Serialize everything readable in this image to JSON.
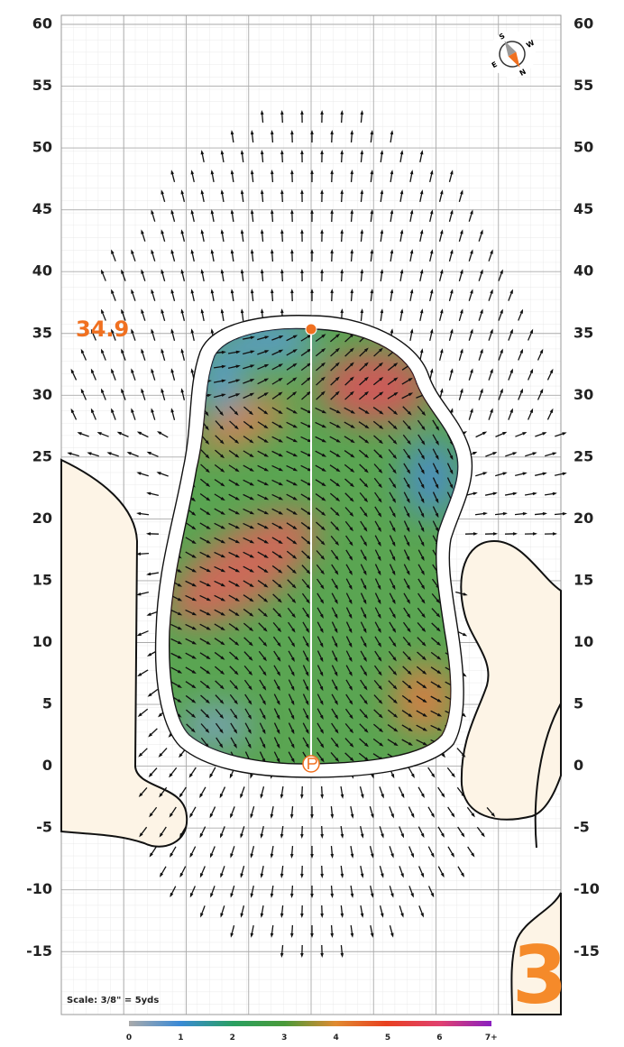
{
  "axis": {
    "labels": [
      60,
      55,
      50,
      45,
      40,
      35,
      30,
      25,
      20,
      15,
      10,
      5,
      0,
      -5,
      -10,
      -15
    ]
  },
  "depth_label": "34.9",
  "scale_note": "Scale: 3/8\" = 5yds",
  "hole_number": "3",
  "compass": {
    "north": "N",
    "south": "S",
    "east": "E",
    "west": "W"
  },
  "legend": {
    "labels": [
      0,
      1,
      2,
      3,
      4,
      5,
      6,
      "7+"
    ]
  }
}
